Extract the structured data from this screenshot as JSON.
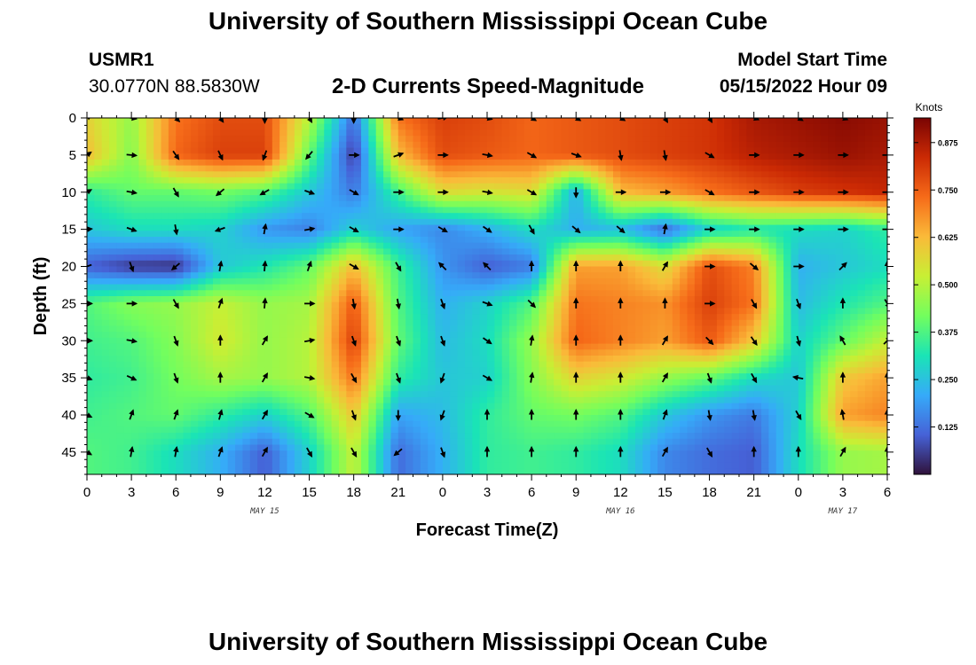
{
  "header": {
    "title": "University of Southern Mississippi Ocean Cube",
    "station_id": "USMR1",
    "coordinates": "30.0770N  88.5830W",
    "subtitle": "2-D Currents Speed-Magnitude",
    "model_start_label": "Model Start Time",
    "model_start_value": "05/15/2022 Hour 09"
  },
  "footer": {
    "title": "University of Southern Mississippi Ocean Cube"
  },
  "chart_data": {
    "type": "heatmap",
    "xlabel": "Forecast Time(Z)",
    "ylabel": "Depth (ft)",
    "x_ticks": [
      {
        "hours": 0,
        "label": "0"
      },
      {
        "hours": 3,
        "label": "3"
      },
      {
        "hours": 6,
        "label": "6"
      },
      {
        "hours": 9,
        "label": "9"
      },
      {
        "hours": 12,
        "label": "12"
      },
      {
        "hours": 15,
        "label": "15"
      },
      {
        "hours": 18,
        "label": "18"
      },
      {
        "hours": 21,
        "label": "21"
      },
      {
        "hours": 24,
        "label": "0"
      },
      {
        "hours": 27,
        "label": "3"
      },
      {
        "hours": 30,
        "label": "6"
      },
      {
        "hours": 33,
        "label": "9"
      },
      {
        "hours": 36,
        "label": "12"
      },
      {
        "hours": 39,
        "label": "15"
      },
      {
        "hours": 42,
        "label": "18"
      },
      {
        "hours": 45,
        "label": "21"
      },
      {
        "hours": 48,
        "label": "0"
      },
      {
        "hours": 51,
        "label": "3"
      },
      {
        "hours": 54,
        "label": "6"
      }
    ],
    "day_labels": [
      {
        "hours": 12,
        "label": "MAY 15"
      },
      {
        "hours": 36,
        "label": "MAY 16"
      },
      {
        "hours": 51,
        "label": "MAY 17"
      }
    ],
    "xlim": [
      0,
      54
    ],
    "y_ticks": [
      0,
      5,
      10,
      15,
      20,
      25,
      30,
      35,
      40,
      45
    ],
    "ylim": [
      0,
      48
    ],
    "y_inverted": true,
    "colorbar": {
      "title": "Knots",
      "ticks": [
        0.125,
        0.25,
        0.375,
        0.5,
        0.625,
        0.75,
        0.875
      ],
      "tick_labels": [
        "0.125",
        "0.250",
        "0.375",
        "0.500",
        "0.625",
        "0.750",
        "0.875"
      ],
      "range": [
        0.0,
        0.94
      ],
      "colormap": [
        "#30123b",
        "#4662d7",
        "#36aaf9",
        "#1ae4b6",
        "#72fe5e",
        "#c8ef34",
        "#faba39",
        "#f66b19",
        "#cb2a04",
        "#7a0403"
      ]
    },
    "vector_depths": [
      0,
      5,
      10,
      15,
      20,
      25,
      30,
      35,
      40,
      45
    ],
    "vector_times": [
      0,
      3,
      6,
      9,
      12,
      15,
      18,
      21,
      24,
      27,
      30,
      33,
      36,
      39,
      42,
      45,
      48,
      51,
      54
    ],
    "speed_grid": [
      [
        0.58,
        0.46,
        0.72,
        0.78,
        0.78,
        0.5,
        0.12,
        0.72,
        0.8,
        0.78,
        0.74,
        0.76,
        0.78,
        0.8,
        0.82,
        0.88,
        0.9,
        0.92,
        0.9
      ],
      [
        0.62,
        0.44,
        0.74,
        0.8,
        0.8,
        0.4,
        0.05,
        0.62,
        0.78,
        0.76,
        0.74,
        0.76,
        0.78,
        0.8,
        0.82,
        0.86,
        0.88,
        0.9,
        0.88
      ],
      [
        0.34,
        0.4,
        0.4,
        0.42,
        0.38,
        0.26,
        0.14,
        0.36,
        0.56,
        0.54,
        0.56,
        0.22,
        0.62,
        0.66,
        0.72,
        0.76,
        0.8,
        0.82,
        0.84
      ],
      [
        0.26,
        0.3,
        0.3,
        0.28,
        0.18,
        0.15,
        0.28,
        0.2,
        0.16,
        0.22,
        0.3,
        0.22,
        0.24,
        0.12,
        0.28,
        0.32,
        0.3,
        0.28,
        0.34
      ],
      [
        0.1,
        0.05,
        0.04,
        0.26,
        0.32,
        0.4,
        0.62,
        0.36,
        0.18,
        0.1,
        0.14,
        0.66,
        0.66,
        0.56,
        0.78,
        0.7,
        0.22,
        0.26,
        0.3
      ],
      [
        0.38,
        0.44,
        0.46,
        0.52,
        0.46,
        0.48,
        0.76,
        0.38,
        0.22,
        0.28,
        0.38,
        0.72,
        0.7,
        0.68,
        0.8,
        0.72,
        0.24,
        0.32,
        0.38
      ],
      [
        0.36,
        0.38,
        0.44,
        0.54,
        0.46,
        0.5,
        0.8,
        0.4,
        0.24,
        0.3,
        0.46,
        0.74,
        0.7,
        0.66,
        0.76,
        0.6,
        0.28,
        0.4,
        0.52
      ],
      [
        0.34,
        0.36,
        0.42,
        0.48,
        0.46,
        0.5,
        0.72,
        0.34,
        0.26,
        0.28,
        0.44,
        0.58,
        0.54,
        0.46,
        0.4,
        0.3,
        0.26,
        0.6,
        0.66
      ],
      [
        0.36,
        0.38,
        0.4,
        0.34,
        0.28,
        0.38,
        0.6,
        0.2,
        0.24,
        0.34,
        0.4,
        0.42,
        0.38,
        0.26,
        0.18,
        0.14,
        0.28,
        0.66,
        0.7
      ],
      [
        0.38,
        0.36,
        0.3,
        0.22,
        0.1,
        0.28,
        0.52,
        0.12,
        0.22,
        0.34,
        0.36,
        0.34,
        0.3,
        0.16,
        0.12,
        0.1,
        0.3,
        0.46,
        0.48
      ]
    ],
    "direction_grid_deg": [
      [
        60,
        100,
        135,
        145,
        180,
        150,
        180,
        110,
        80,
        105,
        120,
        120,
        120,
        150,
        150,
        110,
        120,
        110,
        110
      ],
      [
        55,
        95,
        145,
        155,
        200,
        220,
        90,
        70,
        90,
        100,
        120,
        110,
        170,
        170,
        120,
        90,
        90,
        90,
        90
      ],
      [
        60,
        100,
        150,
        230,
        240,
        110,
        120,
        90,
        90,
        100,
        120,
        180,
        90,
        90,
        120,
        90,
        90,
        90,
        90
      ],
      [
        85,
        110,
        170,
        250,
        10,
        80,
        120,
        90,
        120,
        125,
        150,
        130,
        130,
        10,
        90,
        90,
        90,
        90,
        90
      ],
      [
        250,
        160,
        230,
        10,
        5,
        20,
        120,
        150,
        315,
        315,
        0,
        0,
        0,
        30,
        90,
        130,
        90,
        45,
        0
      ],
      [
        90,
        90,
        150,
        20,
        5,
        90,
        170,
        170,
        160,
        110,
        135,
        0,
        0,
        0,
        90,
        150,
        160,
        0,
        150
      ],
      [
        90,
        100,
        160,
        0,
        30,
        80,
        160,
        160,
        160,
        125,
        10,
        0,
        0,
        30,
        135,
        145,
        165,
        330,
        45
      ],
      [
        110,
        115,
        160,
        0,
        30,
        100,
        150,
        160,
        200,
        120,
        10,
        0,
        0,
        30,
        160,
        150,
        280,
        0,
        0
      ],
      [
        115,
        20,
        20,
        15,
        30,
        120,
        160,
        180,
        200,
        0,
        0,
        0,
        0,
        20,
        170,
        170,
        150,
        350,
        0
      ],
      [
        120,
        10,
        10,
        20,
        30,
        150,
        150,
        230,
        160,
        0,
        0,
        0,
        0,
        30,
        150,
        0,
        0,
        30,
        0
      ]
    ]
  }
}
